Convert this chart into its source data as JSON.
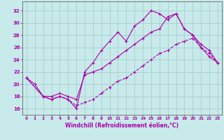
{
  "xlabel": "Windchill (Refroidissement éolien,°C)",
  "xlim": [
    -0.5,
    23.5
  ],
  "ylim": [
    15.0,
    33.5
  ],
  "xticks": [
    0,
    1,
    2,
    3,
    4,
    5,
    6,
    7,
    8,
    9,
    10,
    11,
    12,
    13,
    14,
    15,
    16,
    17,
    18,
    19,
    20,
    21,
    22,
    23
  ],
  "yticks": [
    16,
    18,
    20,
    22,
    24,
    26,
    28,
    30,
    32
  ],
  "bg_color": "#c8eaea",
  "grid_color": "#a0c8c8",
  "line_color": "#aa00aa",
  "line1_x": [
    0,
    1,
    2,
    3,
    4,
    5,
    6,
    7,
    8,
    9,
    10,
    11,
    12,
    13,
    14,
    15,
    16,
    17,
    18,
    19,
    20,
    21,
    22,
    23
  ],
  "line1_y": [
    21.0,
    20.0,
    18.0,
    17.5,
    18.0,
    17.5,
    16.0,
    22.0,
    23.5,
    25.5,
    27.0,
    28.5,
    27.0,
    29.5,
    30.5,
    32.0,
    31.5,
    30.5,
    31.5,
    29.0,
    28.0,
    26.0,
    24.5,
    23.5
  ],
  "line2_x": [
    0,
    2,
    3,
    4,
    5,
    6,
    7,
    8,
    9,
    10,
    11,
    12,
    13,
    14,
    15,
    16,
    17,
    18,
    19,
    20,
    21,
    22,
    23
  ],
  "line2_y": [
    21.0,
    18.0,
    18.0,
    18.5,
    18.0,
    17.5,
    21.5,
    22.0,
    22.5,
    23.5,
    24.5,
    25.5,
    26.5,
    27.5,
    28.5,
    29.0,
    31.0,
    31.5,
    29.0,
    28.0,
    26.5,
    25.5,
    23.5
  ],
  "line3_x": [
    0,
    2,
    3,
    4,
    5,
    6,
    7,
    8,
    9,
    10,
    11,
    12,
    13,
    14,
    15,
    16,
    17,
    18,
    19,
    20,
    21,
    22,
    23
  ],
  "line3_y": [
    21.0,
    18.0,
    17.5,
    18.0,
    17.5,
    16.5,
    17.0,
    17.5,
    18.5,
    19.5,
    20.5,
    21.0,
    22.0,
    23.0,
    24.0,
    25.0,
    25.5,
    26.5,
    27.0,
    27.5,
    26.0,
    25.0,
    23.5
  ]
}
